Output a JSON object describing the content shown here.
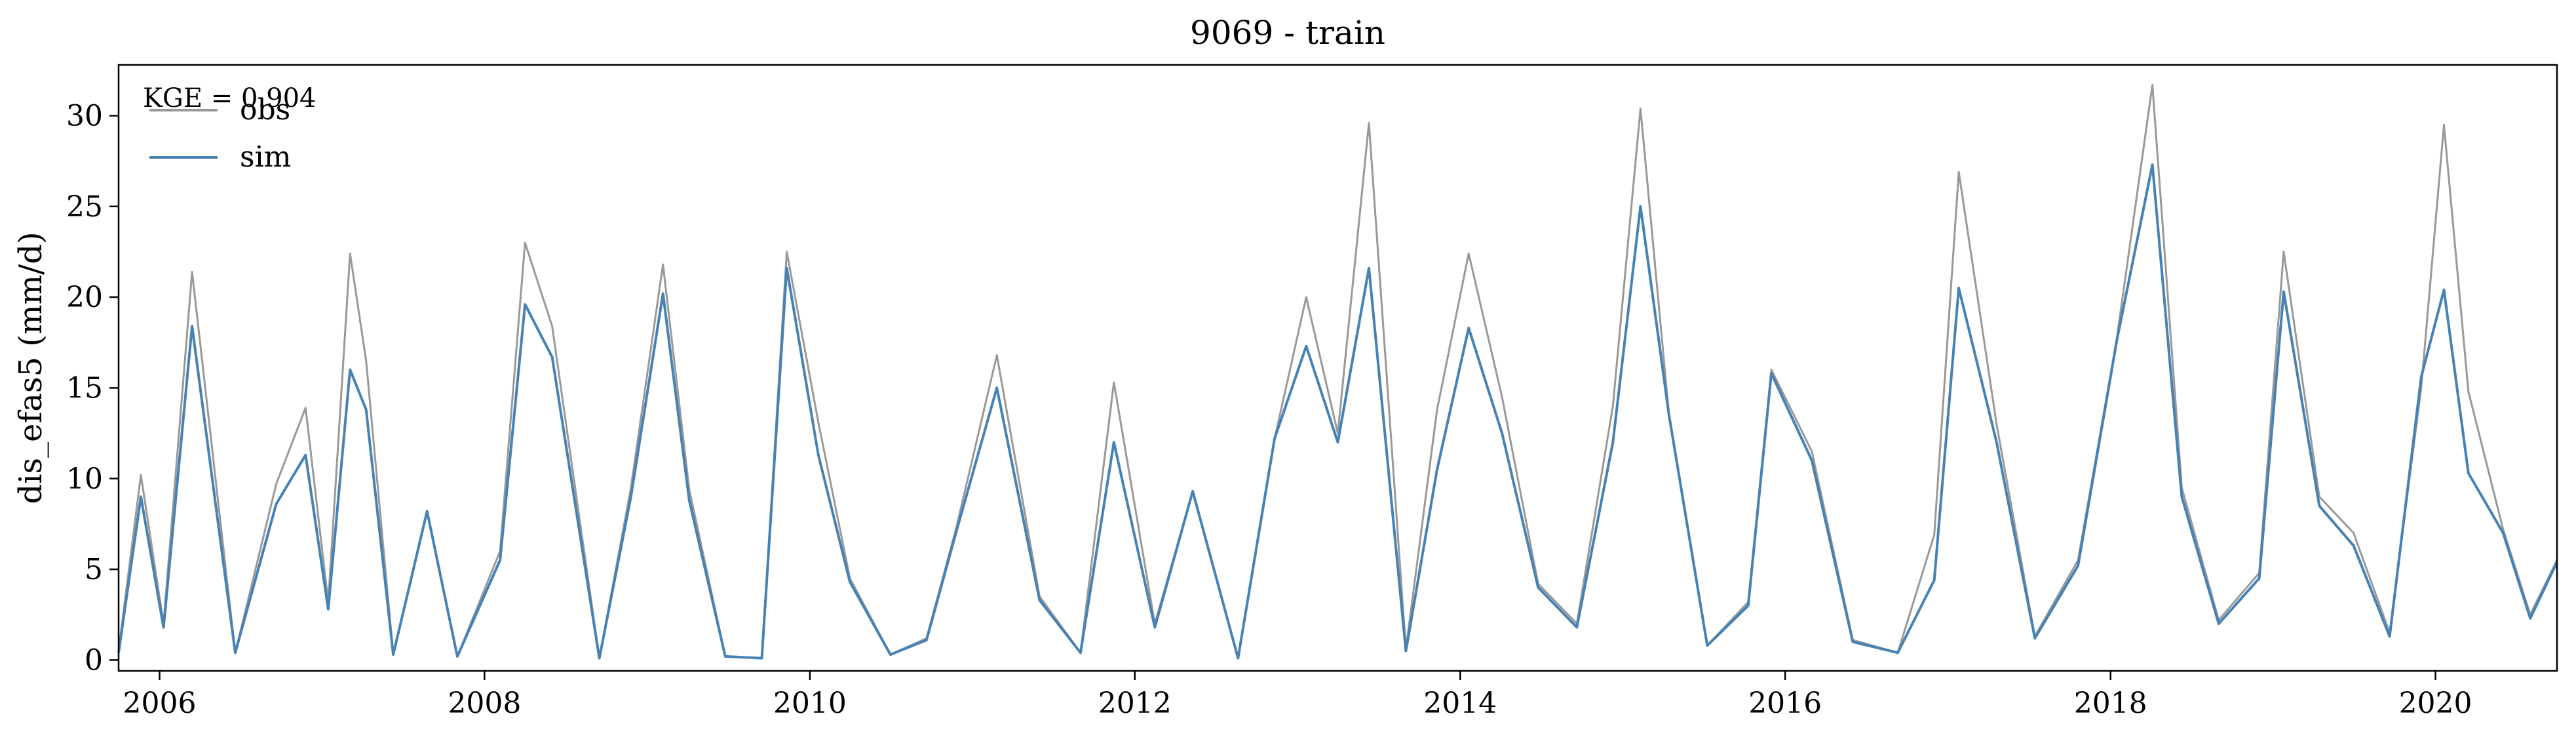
{
  "chart_data": {
    "type": "line",
    "title": "9069 - train",
    "xlabel": "",
    "ylabel": "dis_efas5 (mm/d)",
    "annotation": "KGE = 0.904",
    "xlim": [
      "2005-10-01",
      "2020-09-30"
    ],
    "ylim": [
      -0.6,
      32.8
    ],
    "x_ticks": [
      "2006-01-01",
      "2008-01-01",
      "2010-01-01",
      "2012-01-01",
      "2014-01-01",
      "2016-01-01",
      "2018-01-01",
      "2020-01-01"
    ],
    "x_tick_labels": [
      "2006",
      "2008",
      "2010",
      "2012",
      "2014",
      "2016",
      "2018",
      "2020"
    ],
    "y_ticks": [
      0,
      5,
      10,
      15,
      20,
      25,
      30
    ],
    "y_tick_labels": [
      "0",
      "5",
      "10",
      "15",
      "20",
      "25",
      "30"
    ],
    "legend": {
      "position": "top-left"
    },
    "grid": false,
    "series": [
      {
        "name": "obs",
        "color": "#999999",
        "x": [
          "2005-10-01",
          "2005-11-20",
          "2006-01-10",
          "2006-03-15",
          "2006-06-20",
          "2006-09-20",
          "2006-11-25",
          "2007-01-15",
          "2007-03-05",
          "2007-04-10",
          "2007-06-10",
          "2007-08-25",
          "2007-11-01",
          "2008-02-05",
          "2008-04-01",
          "2008-06-01",
          "2008-09-15",
          "2008-11-25",
          "2009-02-05",
          "2009-04-05",
          "2009-06-25",
          "2009-09-15",
          "2009-11-10",
          "2010-01-20",
          "2010-04-01",
          "2010-07-01",
          "2010-09-20",
          "2010-11-25",
          "2011-02-25",
          "2011-06-01",
          "2011-09-01",
          "2011-11-15",
          "2012-02-15",
          "2012-05-10",
          "2012-08-20",
          "2012-11-10",
          "2013-01-20",
          "2013-04-01",
          "2013-06-10",
          "2013-09-01",
          "2013-11-10",
          "2014-01-20",
          "2014-04-05",
          "2014-06-25",
          "2014-09-20",
          "2014-12-10",
          "2015-02-10",
          "2015-04-15",
          "2015-07-10",
          "2015-10-10",
          "2015-12-01",
          "2016-03-01",
          "2016-06-01",
          "2016-09-10",
          "2016-12-01",
          "2017-01-25",
          "2017-04-20",
          "2017-07-15",
          "2017-10-20",
          "2018-01-15",
          "2018-04-05",
          "2018-06-10",
          "2018-09-01",
          "2018-12-01",
          "2019-01-25",
          "2019-04-15",
          "2019-07-01",
          "2019-09-20",
          "2019-11-30",
          "2020-01-20",
          "2020-03-15",
          "2020-06-01",
          "2020-08-01",
          "2020-09-30"
        ],
        "values": [
          0.5,
          10.2,
          2.0,
          21.4,
          0.4,
          9.7,
          13.9,
          3.2,
          22.4,
          16.5,
          0.3,
          8.2,
          0.2,
          6.0,
          23.0,
          18.4,
          0.1,
          9.5,
          21.8,
          9.4,
          0.2,
          0.1,
          22.5,
          13.1,
          4.5,
          0.3,
          1.2,
          7.2,
          16.8,
          3.5,
          0.4,
          15.3,
          2.0,
          9.3,
          0.1,
          12.2,
          20.0,
          12.5,
          29.6,
          0.6,
          13.8,
          22.4,
          14.5,
          4.2,
          2.0,
          14.0,
          30.4,
          13.5,
          0.8,
          3.2,
          16.0,
          11.5,
          1.1,
          0.4,
          6.9,
          26.9,
          13.0,
          1.3,
          5.5,
          17.7,
          31.7,
          9.5,
          2.2,
          4.8,
          22.5,
          9.0,
          7.0,
          1.5,
          15.0,
          29.5,
          14.8,
          7.2,
          2.5,
          5.5
        ]
      },
      {
        "name": "sim",
        "color": "#4682b4",
        "x": [
          "2005-10-01",
          "2005-11-20",
          "2006-01-10",
          "2006-03-15",
          "2006-06-20",
          "2006-09-20",
          "2006-11-25",
          "2007-01-15",
          "2007-03-05",
          "2007-04-10",
          "2007-06-10",
          "2007-08-25",
          "2007-11-01",
          "2008-02-05",
          "2008-04-01",
          "2008-06-01",
          "2008-09-15",
          "2008-11-25",
          "2009-02-05",
          "2009-04-05",
          "2009-06-25",
          "2009-09-15",
          "2009-11-10",
          "2010-01-20",
          "2010-04-01",
          "2010-07-01",
          "2010-09-20",
          "2010-11-25",
          "2011-02-25",
          "2011-06-01",
          "2011-09-01",
          "2011-11-15",
          "2012-02-15",
          "2012-05-10",
          "2012-08-20",
          "2012-11-10",
          "2013-01-20",
          "2013-04-01",
          "2013-06-10",
          "2013-09-01",
          "2013-11-10",
          "2014-01-20",
          "2014-04-05",
          "2014-06-25",
          "2014-09-20",
          "2014-12-10",
          "2015-02-10",
          "2015-04-15",
          "2015-07-10",
          "2015-10-10",
          "2015-12-01",
          "2016-03-01",
          "2016-06-01",
          "2016-09-10",
          "2016-12-01",
          "2017-01-25",
          "2017-04-20",
          "2017-07-15",
          "2017-10-20",
          "2018-01-15",
          "2018-04-05",
          "2018-06-10",
          "2018-09-01",
          "2018-12-01",
          "2019-01-25",
          "2019-04-15",
          "2019-07-01",
          "2019-09-20",
          "2019-11-30",
          "2020-01-20",
          "2020-03-15",
          "2020-06-01",
          "2020-08-01",
          "2020-09-30"
        ],
        "values": [
          0.4,
          9.0,
          1.8,
          18.4,
          0.4,
          8.6,
          11.3,
          2.8,
          16.0,
          13.8,
          0.3,
          8.2,
          0.2,
          5.5,
          19.6,
          16.7,
          0.1,
          9.0,
          20.2,
          8.8,
          0.2,
          0.1,
          21.6,
          11.3,
          4.3,
          0.3,
          1.1,
          7.0,
          15.0,
          3.3,
          0.4,
          12.0,
          1.8,
          9.3,
          0.1,
          12.2,
          17.3,
          12.0,
          21.6,
          0.5,
          10.5,
          18.3,
          12.5,
          4.0,
          1.8,
          12.0,
          25.0,
          13.5,
          0.8,
          3.0,
          15.8,
          11.0,
          1.0,
          0.4,
          4.4,
          20.5,
          12.0,
          1.2,
          5.2,
          17.6,
          27.3,
          9.0,
          2.0,
          4.5,
          20.3,
          8.5,
          6.3,
          1.3,
          15.6,
          20.4,
          10.3,
          7.0,
          2.3,
          5.4
        ]
      }
    ]
  }
}
